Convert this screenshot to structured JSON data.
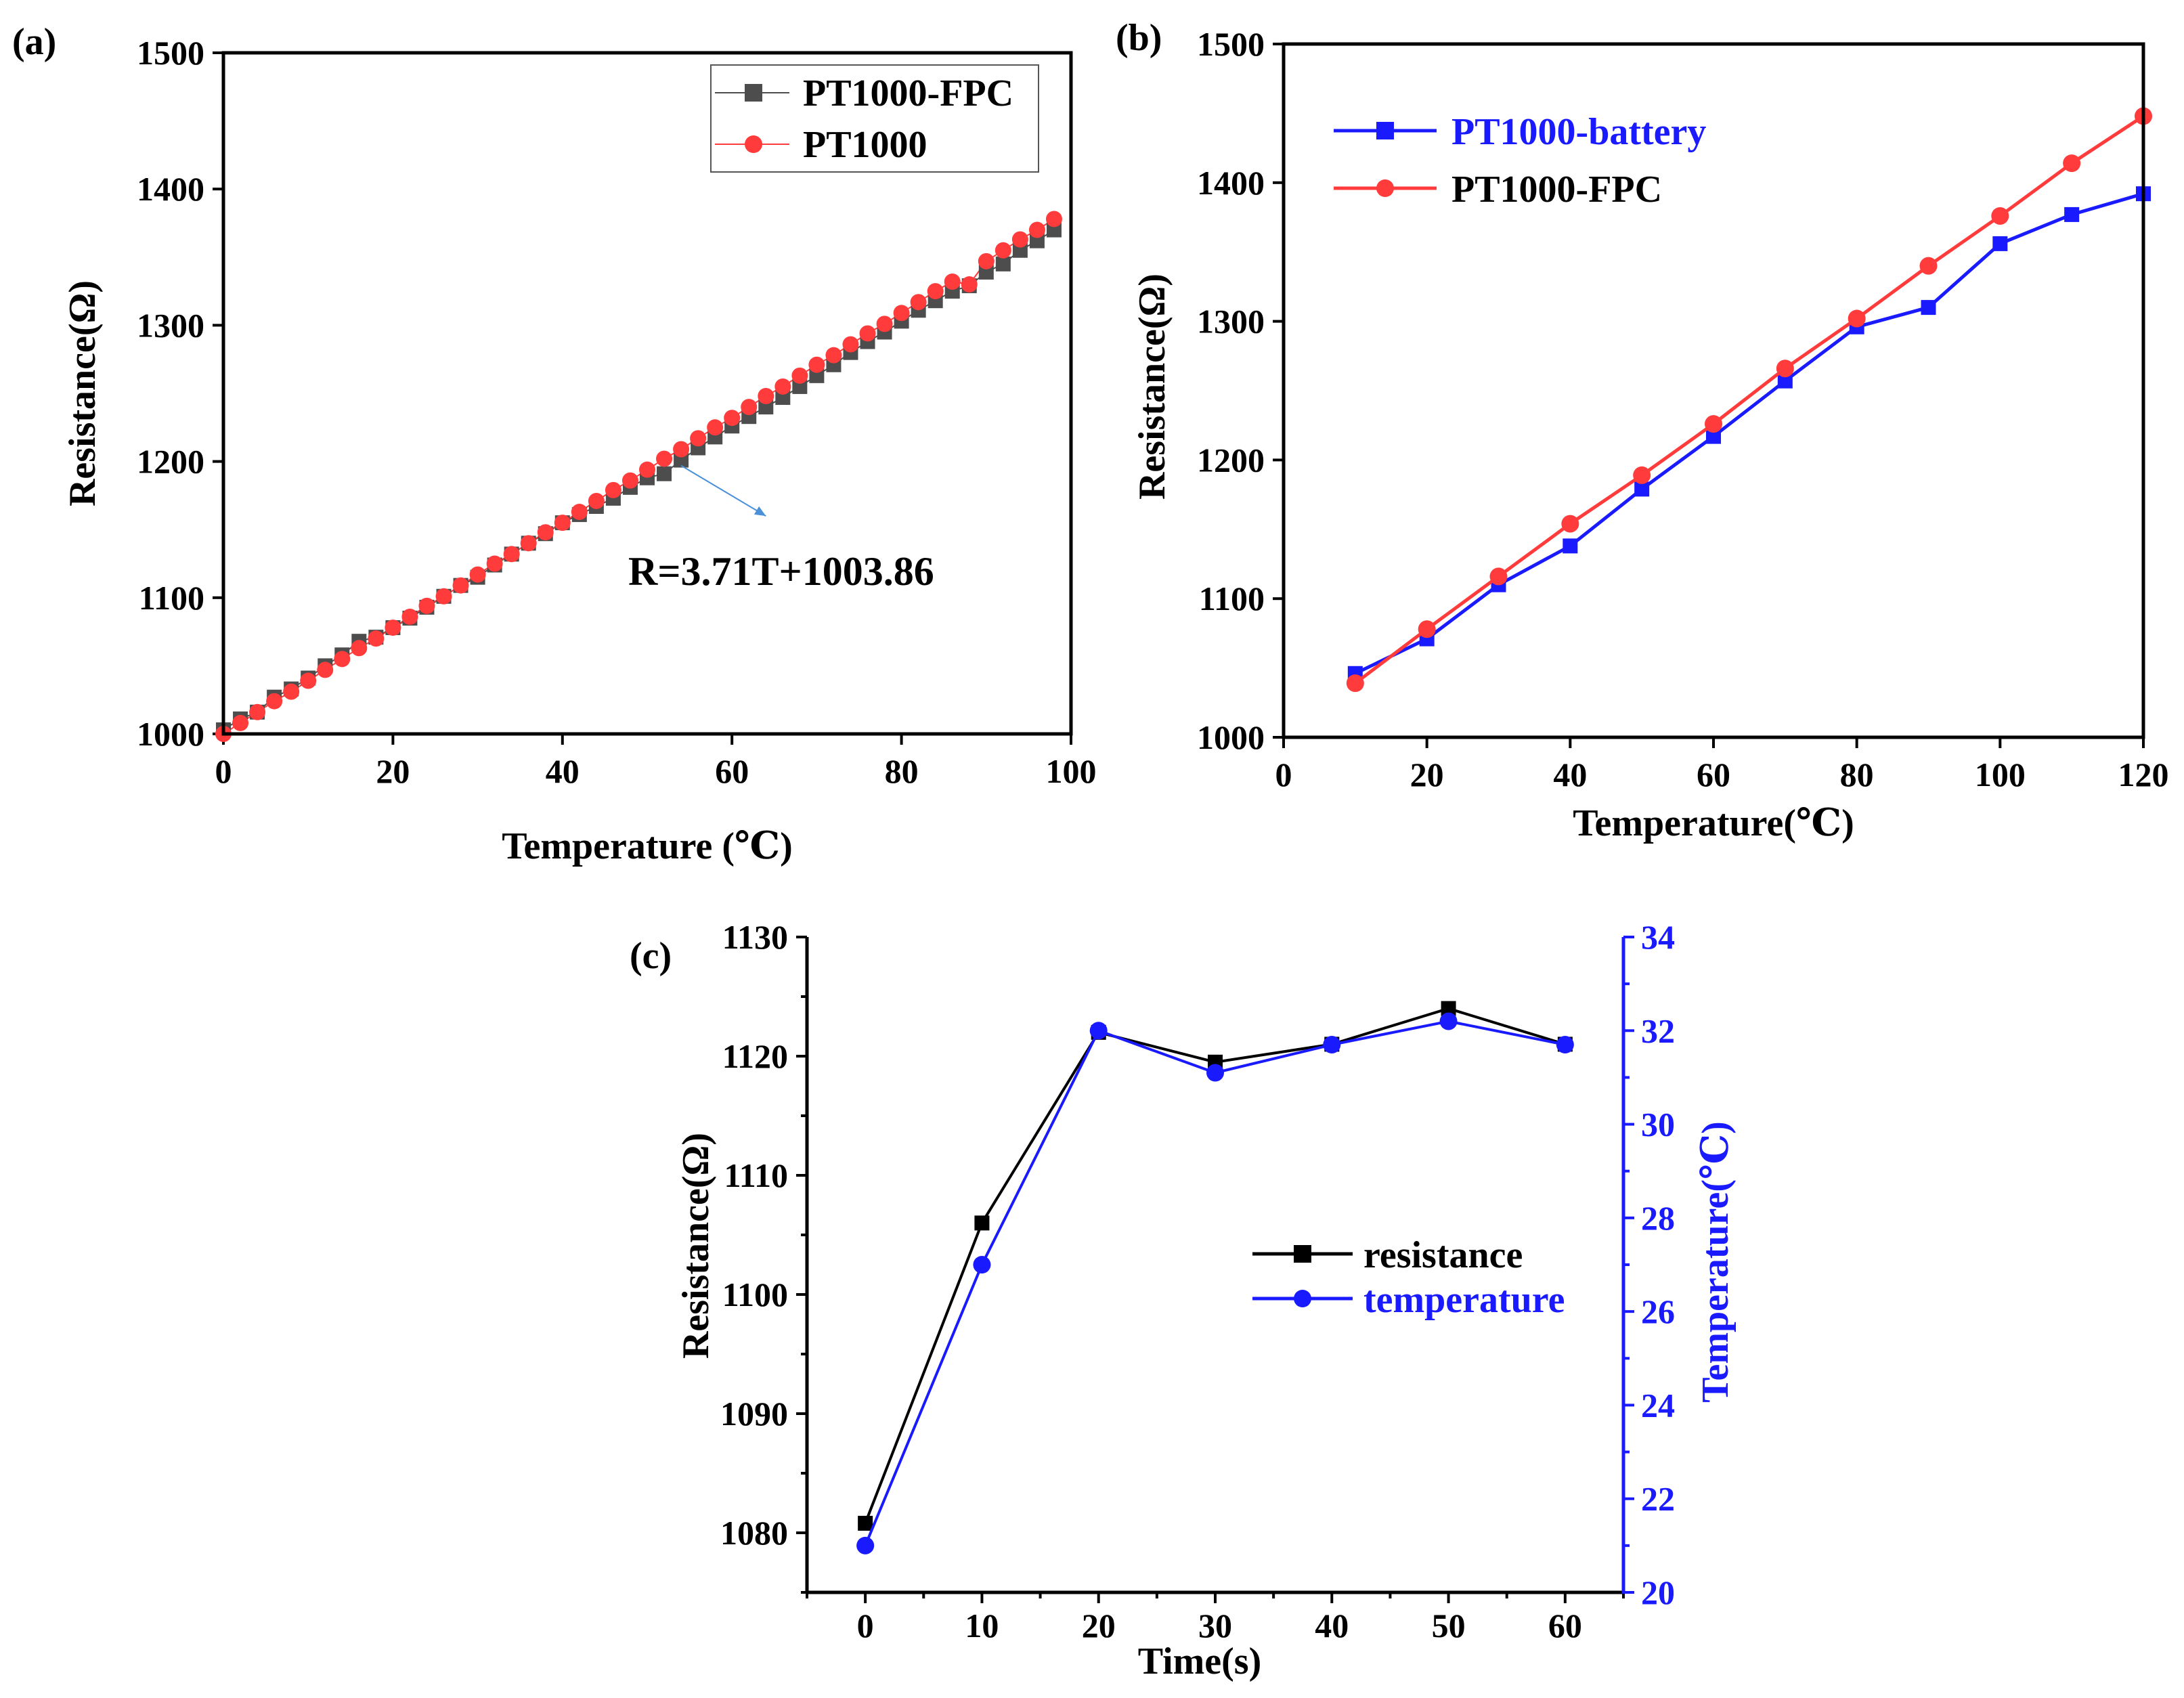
{
  "colors": {
    "black": "#000000",
    "gray": "#4d4d4d",
    "red": "#ff3b3b",
    "blue": "#1a1aff",
    "arrow": "#4a90d9"
  },
  "chart_data": [
    {
      "panel": "(a)",
      "type": "scatter",
      "title": "",
      "xlabel": "Temperature (℃)",
      "ylabel": "Resistance(Ω)",
      "xlim": [
        0,
        100
      ],
      "ylim": [
        1000,
        1500
      ],
      "xticks": [
        0,
        20,
        40,
        60,
        80,
        100
      ],
      "yticks": [
        1000,
        1100,
        1200,
        1300,
        1400,
        1500
      ],
      "legend_position": "top-right",
      "annotation": "R=3.71T+1003.86",
      "annotation_arrow_from": [
        54,
        1197
      ],
      "annotation_arrow_to": [
        64,
        1160
      ],
      "series": [
        {
          "name": "PT1000-FPC",
          "marker": "square",
          "color": "#4d4d4d",
          "x": [
            0,
            2,
            4,
            6,
            8,
            10,
            12,
            14,
            16,
            18,
            20,
            22,
            24,
            26,
            28,
            30,
            32,
            34,
            36,
            38,
            40,
            42,
            44,
            46,
            48,
            50,
            52,
            54,
            56,
            58,
            60,
            62,
            64,
            66,
            68,
            70,
            72,
            74,
            76,
            78,
            80,
            82,
            84,
            86,
            88,
            90,
            92,
            94,
            96,
            98
          ],
          "y": [
            1003,
            1011,
            1016,
            1027,
            1033,
            1041,
            1050,
            1058,
            1068,
            1071,
            1078,
            1085,
            1093,
            1101,
            1109,
            1115,
            1124,
            1132,
            1140,
            1147,
            1155,
            1161,
            1167,
            1173,
            1181,
            1188,
            1191,
            1201,
            1210,
            1218,
            1226,
            1233,
            1240,
            1247,
            1255,
            1263,
            1271,
            1280,
            1288,
            1295,
            1303,
            1311,
            1318,
            1325,
            1329,
            1339,
            1345,
            1355,
            1362,
            1370
          ]
        },
        {
          "name": "PT1000",
          "marker": "circle",
          "color": "#ff3b3b",
          "x": [
            0,
            2,
            4,
            6,
            8,
            10,
            12,
            14,
            16,
            18,
            20,
            22,
            24,
            26,
            28,
            30,
            32,
            34,
            36,
            38,
            40,
            42,
            44,
            46,
            48,
            50,
            52,
            54,
            56,
            58,
            60,
            62,
            64,
            66,
            68,
            70,
            72,
            74,
            76,
            78,
            80,
            82,
            84,
            86,
            88,
            90,
            92,
            94,
            96,
            98
          ],
          "y": [
            1000,
            1008,
            1016,
            1024,
            1031,
            1039,
            1047,
            1055,
            1063,
            1070,
            1078,
            1086,
            1094,
            1101,
            1109,
            1117,
            1125,
            1132,
            1140,
            1148,
            1155,
            1163,
            1171,
            1179,
            1186,
            1194,
            1202,
            1209,
            1217,
            1225,
            1232,
            1240,
            1248,
            1255,
            1263,
            1271,
            1278,
            1286,
            1294,
            1301,
            1309,
            1317,
            1325,
            1332,
            1330,
            1347,
            1355,
            1363,
            1370,
            1378
          ]
        }
      ]
    },
    {
      "panel": "(b)",
      "type": "line",
      "title": "",
      "xlabel": "Temperature(℃)",
      "ylabel": "Resistance(Ω)",
      "xlim": [
        0,
        120
      ],
      "ylim": [
        1000,
        1500
      ],
      "xticks": [
        0,
        20,
        40,
        60,
        80,
        100,
        120
      ],
      "yticks": [
        1000,
        1100,
        1200,
        1300,
        1400,
        1500
      ],
      "legend_position": "top-left",
      "x": [
        10,
        20,
        30,
        40,
        50,
        60,
        70,
        80,
        90,
        100,
        110,
        120
      ],
      "series": [
        {
          "name": "PT1000-battery",
          "marker": "square",
          "color": "#1a1aff",
          "values": [
            1046,
            1071,
            1110,
            1138,
            1179,
            1217,
            1257,
            1296,
            1310,
            1356,
            1377,
            1392
          ]
        },
        {
          "name": "PT1000-FPC",
          "marker": "circle",
          "color": "#ff3b3b",
          "values": [
            1039,
            1078,
            1116,
            1154,
            1189,
            1226,
            1266,
            1302,
            1340,
            1376,
            1414,
            1448
          ]
        }
      ]
    },
    {
      "panel": "(c)",
      "type": "line",
      "title": "",
      "xlabel": "Time(s)",
      "ylabel": "Resistance(Ω)",
      "ylabel_right": "Temperature(℃)",
      "xlim": [
        -5,
        65
      ],
      "ylim": [
        1075,
        1130
      ],
      "ylim_right": [
        20,
        34
      ],
      "xticks": [
        0,
        10,
        20,
        30,
        40,
        50,
        60
      ],
      "yticks": [
        1080,
        1090,
        1100,
        1110,
        1120,
        1130
      ],
      "yticks_right": [
        20,
        22,
        24,
        26,
        28,
        30,
        32,
        34
      ],
      "legend_position": "center-right",
      "x": [
        0,
        10,
        20,
        30,
        40,
        50,
        60
      ],
      "series": [
        {
          "name": "resistance",
          "axis": "left",
          "marker": "square",
          "color": "#000000",
          "values": [
            1080.8,
            1106,
            1122,
            1119.5,
            1121,
            1124,
            1121
          ]
        },
        {
          "name": "temperature",
          "axis": "right",
          "marker": "circle",
          "color": "#1a1aff",
          "values": [
            21.0,
            27.0,
            32.0,
            31.1,
            31.7,
            32.2,
            31.7
          ]
        }
      ]
    }
  ]
}
